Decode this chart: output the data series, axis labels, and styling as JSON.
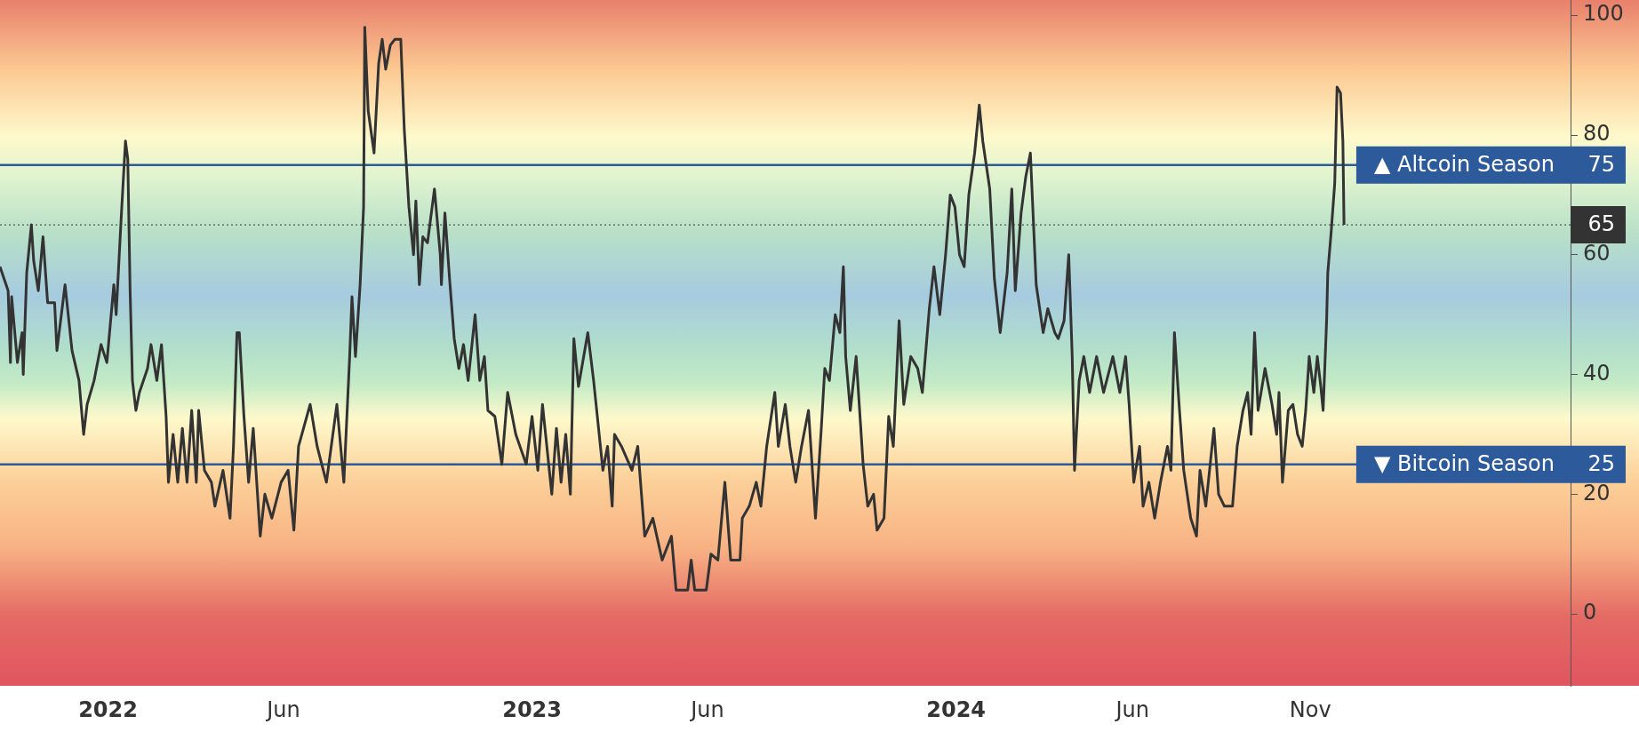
{
  "chart_data": {
    "type": "line",
    "x": [
      "2021-09-30",
      "2021-10-07",
      "2021-10-09",
      "2021-10-10",
      "2021-10-15",
      "2021-10-19",
      "2021-10-20",
      "2021-10-23",
      "2021-10-27",
      "2021-10-29",
      "2021-11-02",
      "2021-11-06",
      "2021-11-10",
      "2021-11-16",
      "2021-11-18",
      "2021-11-25",
      "2021-12-01",
      "2021-12-07",
      "2021-12-11",
      "2021-12-14",
      "2021-12-20",
      "2021-12-26",
      "2021-12-31",
      "2022-01-06",
      "2022-01-08",
      "2022-01-12",
      "2022-01-16",
      "2022-01-18",
      "2022-01-20",
      "2022-01-22",
      "2022-01-25",
      "2022-01-28",
      "2022-02-04",
      "2022-02-07",
      "2022-02-12",
      "2022-02-16",
      "2022-02-20",
      "2022-02-22",
      "2022-02-26",
      "2022-03-02",
      "2022-03-06",
      "2022-03-10",
      "2022-03-14",
      "2022-03-18",
      "2022-03-20",
      "2022-03-25",
      "2022-03-31",
      "2022-04-03",
      "2022-04-10",
      "2022-04-16",
      "2022-04-19",
      "2022-04-22",
      "2022-04-24",
      "2022-04-28",
      "2022-05-02",
      "2022-05-06",
      "2022-05-12",
      "2022-05-16",
      "2022-05-22",
      "2022-05-30",
      "2022-06-05",
      "2022-06-10",
      "2022-06-14",
      "2022-06-24",
      "2022-06-30",
      "2022-07-08",
      "2022-07-17",
      "2022-07-23",
      "2022-07-28",
      "2022-07-30",
      "2022-08-02",
      "2022-08-06",
      "2022-08-09",
      "2022-08-10",
      "2022-08-13",
      "2022-08-18",
      "2022-08-22",
      "2022-08-25",
      "2022-08-28",
      "2022-09-01",
      "2022-09-05",
      "2022-09-10",
      "2022-09-13",
      "2022-09-17",
      "2022-09-21",
      "2022-09-23",
      "2022-09-26",
      "2022-09-29",
      "2022-10-03",
      "2022-10-09",
      "2022-10-14",
      "2022-10-15",
      "2022-10-18",
      "2022-10-22",
      "2022-10-26",
      "2022-10-30",
      "2022-11-03",
      "2022-11-07",
      "2022-11-13",
      "2022-11-17",
      "2022-11-21",
      "2022-11-24",
      "2022-11-30",
      "2022-12-06",
      "2022-12-11",
      "2022-12-18",
      "2022-12-27",
      "2023-01-01",
      "2023-01-06",
      "2023-01-10",
      "2023-01-18",
      "2023-01-22",
      "2023-01-26",
      "2023-01-30",
      "2023-02-03",
      "2023-02-06",
      "2023-02-10",
      "2023-02-18",
      "2023-02-23",
      "2023-03-03",
      "2023-03-07",
      "2023-03-11",
      "2023-03-13",
      "2023-03-19",
      "2023-03-28",
      "2023-04-02",
      "2023-04-08",
      "2023-04-15",
      "2023-04-23",
      "2023-05-01",
      "2023-05-05",
      "2023-05-15",
      "2023-05-18",
      "2023-05-21",
      "2023-05-31",
      "2023-06-04",
      "2023-06-10",
      "2023-06-16",
      "2023-06-21",
      "2023-06-29",
      "2023-07-01",
      "2023-07-07",
      "2023-07-13",
      "2023-07-17",
      "2023-07-22",
      "2023-07-29",
      "2023-08-01",
      "2023-08-07",
      "2023-08-11",
      "2023-08-16",
      "2023-08-21",
      "2023-08-27",
      "2023-09-02",
      "2023-09-07",
      "2023-09-10",
      "2023-09-14",
      "2023-09-19",
      "2023-09-23",
      "2023-09-26",
      "2023-09-28",
      "2023-10-02",
      "2023-10-07",
      "2023-10-13",
      "2023-10-17",
      "2023-10-22",
      "2023-10-25",
      "2023-10-31",
      "2023-11-04",
      "2023-11-08",
      "2023-11-13",
      "2023-11-17",
      "2023-11-23",
      "2023-11-29",
      "2023-12-03",
      "2023-12-09",
      "2023-12-13",
      "2023-12-18",
      "2023-12-23",
      "2023-12-27",
      "2023-12-31",
      "2024-01-04",
      "2024-01-08",
      "2024-01-12",
      "2024-01-17",
      "2024-01-21",
      "2024-01-24",
      "2024-01-30",
      "2024-02-03",
      "2024-02-08",
      "2024-02-14",
      "2024-02-18",
      "2024-02-21",
      "2024-02-26",
      "2024-03-01",
      "2024-03-05",
      "2024-03-10",
      "2024-03-16",
      "2024-03-20",
      "2024-03-26",
      "2024-03-29",
      "2024-04-03",
      "2024-04-07",
      "2024-04-10",
      "2024-04-12",
      "2024-04-16",
      "2024-04-20",
      "2024-04-25",
      "2024-05-01",
      "2024-05-07",
      "2024-05-15",
      "2024-05-21",
      "2024-05-26",
      "2024-05-29",
      "2024-06-02",
      "2024-06-07",
      "2024-06-10",
      "2024-06-15",
      "2024-06-20",
      "2024-06-25",
      "2024-07-01",
      "2024-07-04",
      "2024-07-07",
      "2024-07-11",
      "2024-07-15",
      "2024-07-21",
      "2024-07-26",
      "2024-07-29",
      "2024-08-03",
      "2024-08-10",
      "2024-08-14",
      "2024-08-19",
      "2024-08-26",
      "2024-08-30",
      "2024-09-04",
      "2024-09-08",
      "2024-09-11",
      "2024-09-14",
      "2024-09-17",
      "2024-09-23",
      "2024-09-29",
      "2024-10-03",
      "2024-10-05",
      "2024-10-08",
      "2024-10-13",
      "2024-10-17",
      "2024-10-21",
      "2024-10-25",
      "2024-10-28",
      "2024-10-31",
      "2024-11-04",
      "2024-11-07",
      "2024-11-10",
      "2024-11-12",
      "2024-11-15",
      "2024-11-16",
      "2024-11-19",
      "2024-11-22",
      "2024-11-24",
      "2024-11-27",
      "2024-11-29",
      "2024-11-30"
    ],
    "series": [
      {
        "color": "#333333",
        "values": [
          58,
          54,
          42,
          53,
          42,
          47,
          40,
          57,
          65,
          59,
          54,
          63,
          52,
          52,
          44,
          55,
          44,
          39,
          30,
          35,
          39,
          45,
          42,
          55,
          50,
          65,
          79,
          76,
          54,
          39,
          34,
          37,
          41,
          45,
          39,
          45,
          33,
          22,
          30,
          22,
          31,
          22,
          34,
          22,
          34,
          24,
          22,
          18,
          24,
          16,
          28,
          47,
          47,
          33,
          22,
          31,
          13,
          20,
          16,
          22,
          24,
          14,
          28,
          35,
          28,
          22,
          35,
          22,
          43,
          53,
          43,
          55,
          68,
          98,
          84,
          77,
          92,
          96,
          91,
          95,
          96,
          96,
          81,
          68,
          60,
          69,
          55,
          63,
          62,
          71,
          60,
          55,
          67,
          56,
          46,
          41,
          45,
          39,
          50,
          39,
          43,
          34,
          33,
          25,
          37,
          30,
          25,
          33,
          24,
          35,
          20,
          31,
          22,
          30,
          20,
          46,
          38,
          47,
          39,
          24,
          28,
          18,
          30,
          28,
          24,
          28,
          13,
          16,
          9,
          13,
          4,
          4,
          9,
          4,
          4,
          10,
          9,
          22,
          9,
          9,
          16,
          18,
          22,
          18,
          28,
          37,
          28,
          35,
          28,
          22,
          28,
          34,
          16,
          31,
          41,
          39,
          50,
          47,
          58,
          43,
          34,
          43,
          25,
          18,
          20,
          14,
          16,
          33,
          28,
          49,
          35,
          43,
          41,
          37,
          51,
          58,
          50,
          60,
          70,
          68,
          60,
          58,
          70,
          77,
          85,
          79,
          71,
          56,
          47,
          57,
          71,
          54,
          67,
          73,
          77,
          55,
          47,
          51,
          47,
          46,
          49,
          60,
          43,
          24,
          39,
          43,
          37,
          43,
          37,
          43,
          37,
          43,
          35,
          22,
          28,
          18,
          22,
          16,
          22,
          28,
          24,
          47,
          35,
          24,
          16,
          13,
          24,
          18,
          31,
          20,
          18,
          18,
          28,
          34,
          37,
          30,
          47,
          34,
          41,
          35,
          30,
          37,
          22,
          34,
          35,
          30,
          28,
          34,
          43,
          37,
          43,
          38,
          34,
          49,
          57,
          64,
          72,
          88,
          87,
          79,
          65
        ]
      }
    ],
    "xlim": [
      "2021-09-30",
      "2025-06-13"
    ],
    "xticks": [
      {
        "value": "2022-01-01",
        "label": "2022"
      },
      {
        "value": "2022-06-01",
        "label": "Jun"
      },
      {
        "value": "2023-01-01",
        "label": "2023"
      },
      {
        "value": "2023-06-01",
        "label": "Jun"
      },
      {
        "value": "2024-01-01",
        "label": "2024"
      },
      {
        "value": "2024-06-01",
        "label": "Jun"
      },
      {
        "value": "2024-11-01",
        "label": "Nov"
      }
    ],
    "ylim": [
      -12,
      102.5
    ],
    "yticks": [
      0,
      20,
      40,
      60,
      80,
      100
    ],
    "ref_lines": [
      {
        "axis": "y",
        "value": 75,
        "label": "▲ Altcoin Season",
        "color": "#2d5a9a",
        "line_style": "solid"
      },
      {
        "axis": "y",
        "value": 25,
        "label": "▼ Bitcoin Season",
        "color": "#2d5a9a",
        "line_style": "solid"
      },
      {
        "axis": "y",
        "value": 65,
        "label": null,
        "color": "#333333",
        "line_style": "dotted"
      }
    ],
    "annotations": [
      "75",
      "25",
      "65"
    ],
    "legend": false
  }
}
